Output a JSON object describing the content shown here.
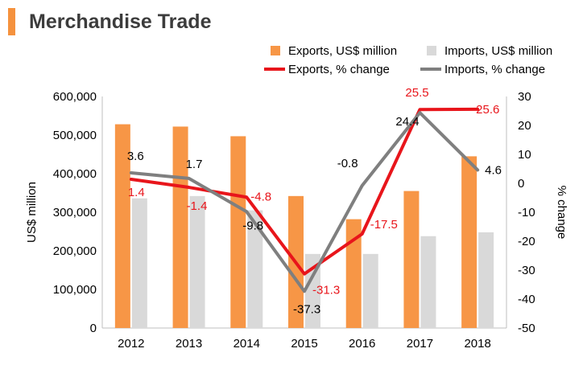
{
  "page": {
    "title": "Merchandise Trade"
  },
  "colors": {
    "exports_bar": "#f79646",
    "imports_bar": "#d9d9d9",
    "exports_line": "#e8151b",
    "imports_line": "#7f7f7f",
    "title_accent": "#f5923e",
    "axis": "#bfbfbf"
  },
  "chart_data": {
    "type": "bar",
    "categories": [
      "2012",
      "2013",
      "2014",
      "2015",
      "2016",
      "2017",
      "2018"
    ],
    "ylabel": "US$ million",
    "ylabel_right": "% change",
    "ylim": [
      0,
      600000
    ],
    "ylim_right": [
      -50,
      30
    ],
    "yticks": [
      "0",
      "100,000",
      "200,000",
      "300,000",
      "400,000",
      "500,000",
      "600,000"
    ],
    "yticks_right": [
      "-50",
      "-40",
      "-30",
      "-20",
      "-10",
      "0",
      "10",
      "20",
      "30"
    ],
    "legend_position": "top-right",
    "bar_series": [
      {
        "name": "Exports, US$ million",
        "values": [
          528000,
          522000,
          497000,
          342000,
          282000,
          355000,
          445000
        ]
      },
      {
        "name": "Imports, US$ million",
        "values": [
          336000,
          342000,
          305000,
          192000,
          192000,
          238000,
          248000
        ]
      }
    ],
    "line_series": [
      {
        "name": "Exports, % change",
        "axis": "right",
        "values": [
          1.4,
          -1.4,
          -4.8,
          -31.3,
          -17.5,
          25.5,
          25.6
        ],
        "labels": [
          "1.4",
          "-1.4",
          "-4.8",
          "-31.3",
          "-17.5",
          "25.5",
          "25.6"
        ]
      },
      {
        "name": "Imports, % change",
        "axis": "right",
        "values": [
          3.6,
          1.7,
          -9.8,
          -37.3,
          -0.8,
          24.4,
          4.6
        ],
        "labels": [
          "3.6",
          "1.7",
          "-9.8",
          "-37.3",
          "-0.8",
          "24.4",
          "4.6"
        ]
      }
    ]
  }
}
